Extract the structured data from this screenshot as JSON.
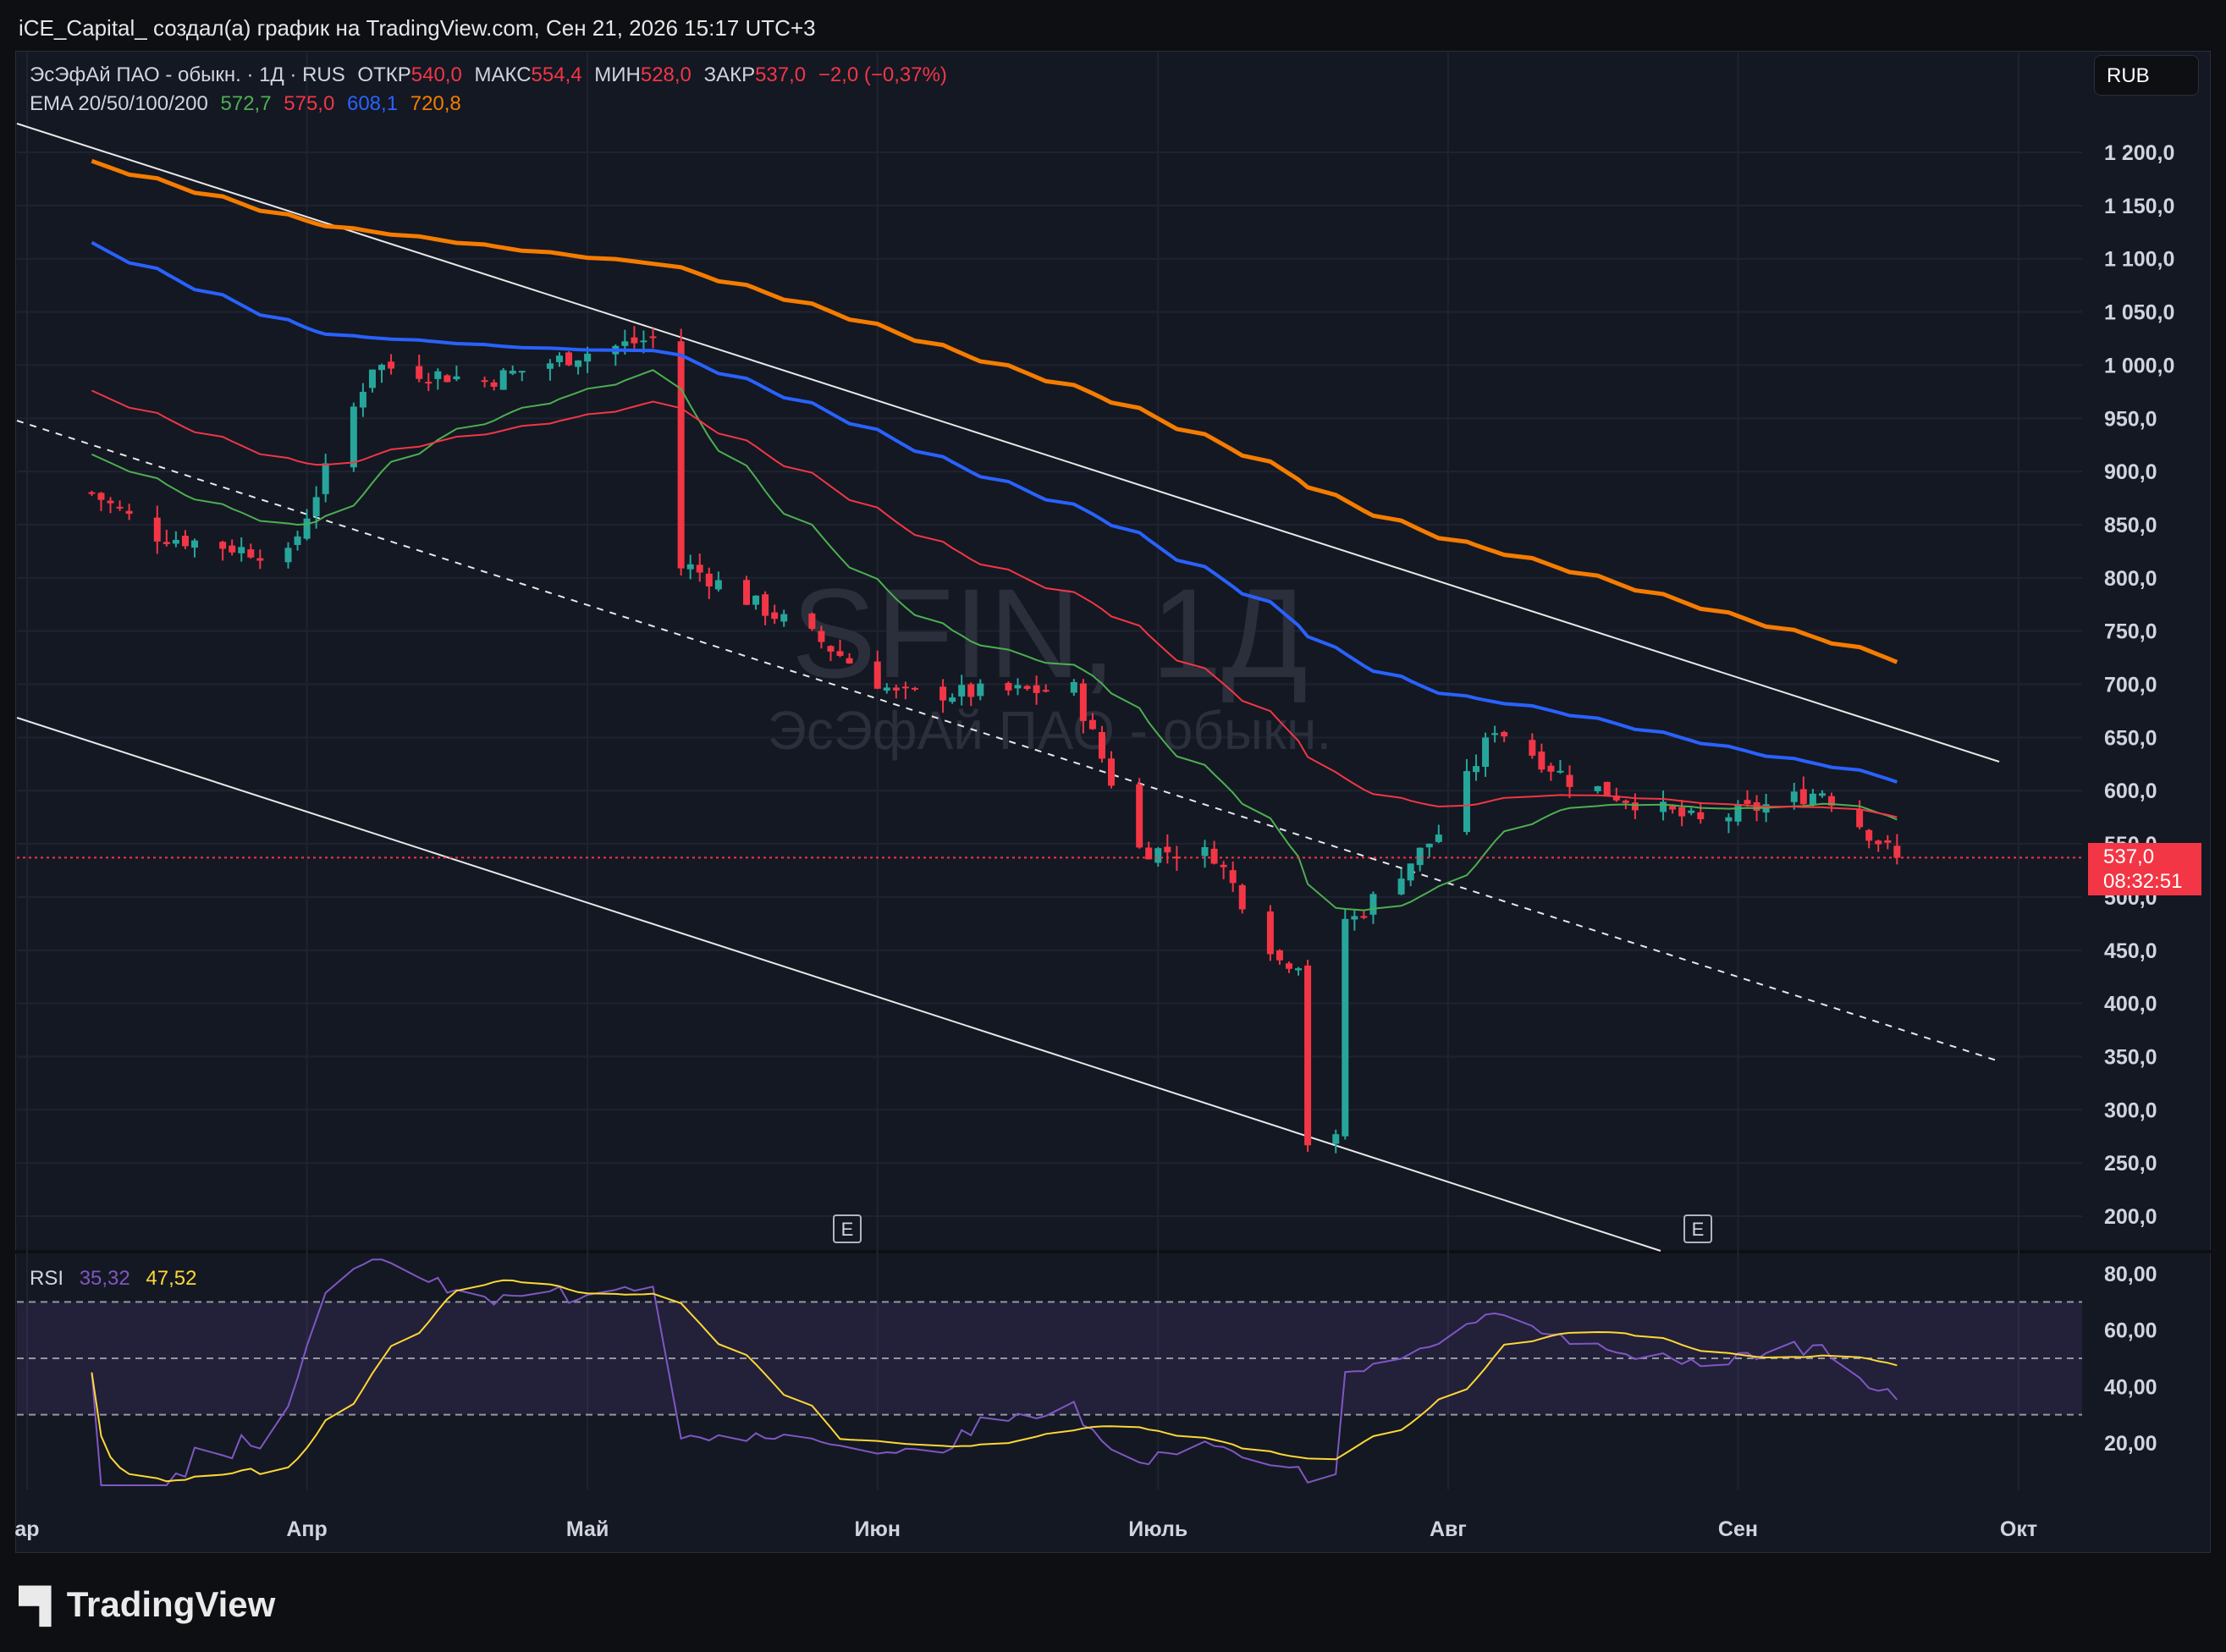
{
  "header": {
    "text": "iCE_Capital_ создал(а) график на TradingView.com, Сен 21, 2026 15:17 UTC+3"
  },
  "legend": {
    "symbol": "ЭсЭфАй ПАО - обыкн. · 1Д · RUS",
    "open_label": "ОТКР",
    "open_value": "540,0",
    "high_label": "МАКС",
    "high_value": "554,4",
    "low_label": "МИН",
    "low_value": "528,0",
    "close_label": "ЗАКР",
    "close_value": "537,0",
    "change": "−2,0 (−0,37%)",
    "ema_label": "EMA 20/50/100/200",
    "ema20": "572,7",
    "ema50": "575,0",
    "ema100": "608,1",
    "ema200": "720,8"
  },
  "currency_button": "RUB",
  "watermark": {
    "ticker": "SFIN, 1Д",
    "name": "ЭсЭфАй ПАО - обыкн."
  },
  "price_tag": {
    "price": "537,0",
    "countdown": "08:32:51"
  },
  "earnings_marker": "E",
  "rsi_legend": {
    "label": "RSI",
    "value": "35,32",
    "ma_value": "47,52"
  },
  "footer": {
    "brand": "TradingView"
  },
  "colors": {
    "up": "#26a69a",
    "down": "#f23645",
    "ema20": "#4caf50",
    "ema50": "#f23645",
    "ema100": "#2962ff",
    "ema200": "#f57c00",
    "rsi": "#7e57c2",
    "rsi_ma": "#fdd835"
  },
  "chart_data": [
    {
      "type": "line",
      "title": "ЭсЭфАй ПАО - обыкн. · 1Д · RUS",
      "x_tick_labels": [
        "ар",
        "Апр",
        "Май",
        "Июн",
        "Июль",
        "Авг",
        "Сен",
        "Окт"
      ],
      "y_tick_labels": [
        "1 200,0",
        "1 150,0",
        "1 100,0",
        "1 050,0",
        "1 000,0",
        "950,0",
        "900,0",
        "850,0",
        "800,0",
        "750,0",
        "700,0",
        "650,0",
        "600,0",
        "550,0",
        "500,0",
        "450,0",
        "400,0",
        "350,0",
        "300,0",
        "250,0",
        "200,0"
      ],
      "ylim": [
        180,
        1230
      ],
      "grid": true,
      "ohlc_approx_close": [
        [
          "2026-03-09",
          880
        ],
        [
          "2026-03-16",
          840
        ],
        [
          "2026-03-23",
          830
        ],
        [
          "2026-03-30",
          820
        ],
        [
          "2026-04-08",
          1000
        ],
        [
          "2026-04-20",
          985
        ],
        [
          "2026-04-30",
          1010
        ],
        [
          "2026-05-08",
          1025
        ],
        [
          "2026-05-12",
          810
        ],
        [
          "2026-05-26",
          740
        ],
        [
          "2026-06-03",
          690
        ],
        [
          "2026-06-22",
          695
        ],
        [
          "2026-06-29",
          545
        ],
        [
          "2026-07-07",
          540
        ],
        [
          "2026-07-14",
          440
        ],
        [
          "2026-07-20",
          270
        ],
        [
          "2026-07-22",
          480
        ],
        [
          "2026-07-31",
          560
        ],
        [
          "2026-08-06",
          660
        ],
        [
          "2026-08-14",
          610
        ],
        [
          "2026-08-28",
          570
        ],
        [
          "2026-09-10",
          600
        ],
        [
          "2026-09-18",
          537
        ]
      ],
      "series": [
        {
          "name": "EMA 20",
          "values_end": 572.7
        },
        {
          "name": "EMA 50",
          "values_end": 575.0
        },
        {
          "name": "EMA 100",
          "values_end": 608.1
        },
        {
          "name": "EMA 200",
          "values_end": 720.8
        }
      ],
      "last_price": 537.0
    },
    {
      "type": "line",
      "title": "RSI",
      "y_tick_labels": [
        "80,00",
        "60,00",
        "40,00",
        "20,00"
      ],
      "ylim": [
        5,
        85
      ],
      "levels": [
        70,
        50,
        30
      ],
      "series": [
        {
          "name": "RSI",
          "last": 35.32
        },
        {
          "name": "RSI MA",
          "last": 47.52
        }
      ]
    }
  ]
}
